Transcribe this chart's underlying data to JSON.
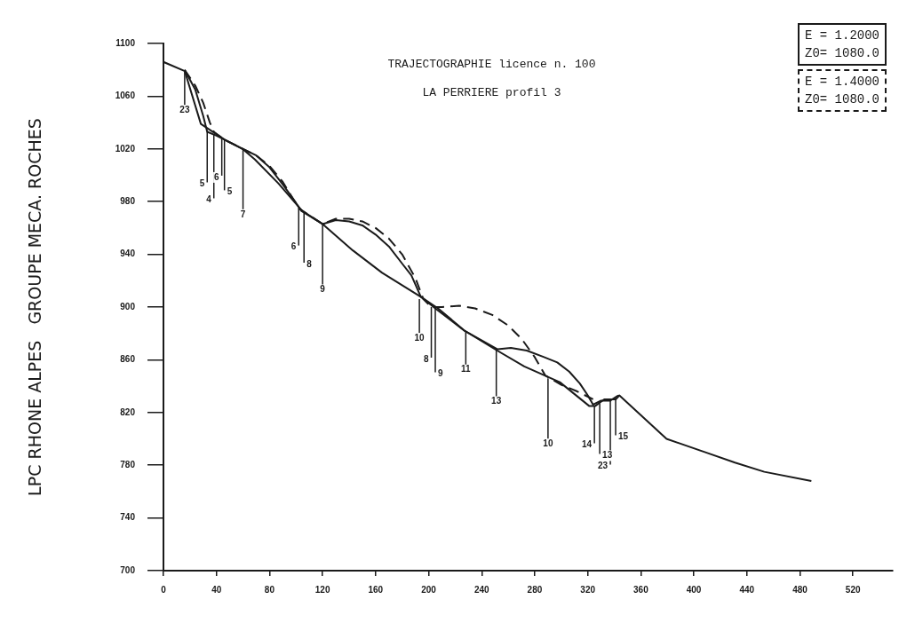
{
  "chart_data": {
    "type": "line",
    "title": "TRAJECTOGRAPHIE licence n. 100",
    "subtitle": "LA PERRIERE profil 3",
    "ylabel": "LPC RHONE ALPES   GROUPE MECA. ROCHES",
    "xlim": [
      0,
      550
    ],
    "xticks": [
      0,
      40,
      80,
      120,
      160,
      200,
      240,
      280,
      320,
      360,
      400,
      440,
      480,
      520
    ],
    "ylim": [
      700,
      1100
    ],
    "yticks": [
      700,
      740,
      780,
      820,
      860,
      900,
      940,
      980,
      1020,
      1060,
      1100
    ],
    "grid": false,
    "legend": "top right",
    "marker": "none",
    "series": [
      {
        "color": "#1a1a1a",
        "line_style": "solid",
        "x": [
          0,
          16.1,
          28.2,
          46.2,
          59.6,
          69,
          86.5,
          104.6,
          120,
          142.8,
          164.9,
          193.7,
          207.1,
          227.2,
          250,
          272.1,
          298.9,
          321,
          325.7,
          332.4,
          341.2,
          343.8,
          379.4,
          408.2,
          431,
          453.1,
          488.6
        ],
        "values": [
          1086,
          1079,
          1039,
          1027,
          1020,
          1012,
          994,
          973,
          963,
          943,
          926,
          908,
          899,
          882,
          868,
          855,
          843,
          825,
          825,
          830,
          830,
          833,
          800,
          790,
          782,
          775,
          768
        ]
      },
      {
        "name": "E = 1.2000\nZ0= 1080.0",
        "color": "#1a1a1a",
        "line_style": "solid",
        "x": [
          16,
          24,
          30,
          33,
          40,
          46,
          60,
          70,
          80,
          90,
          100,
          104,
          120,
          130,
          140,
          150,
          160,
          170,
          180,
          187,
          194,
          205,
          227,
          252,
          262,
          274,
          287,
          297,
          306,
          314,
          320,
          324,
          330,
          337,
          343
        ],
        "values": [
          1080,
          1065,
          1045,
          1033,
          1030,
          1027,
          1020,
          1015,
          1006,
          993,
          979,
          973,
          963,
          966,
          965,
          962,
          955,
          946,
          933,
          924,
          908,
          899,
          882,
          868,
          869,
          867,
          862,
          858,
          851,
          842,
          833,
          826,
          829,
          829,
          833
        ]
      },
      {
        "name": "E = 1.4000\nZ0= 1080.0",
        "color": "#1a1a1a",
        "line_style": "dashed",
        "x": [
          16,
          24,
          30,
          35,
          38,
          46,
          60,
          70,
          80,
          90,
          102,
          120,
          130,
          140,
          150,
          160,
          170,
          180,
          190,
          196,
          202,
          210,
          223,
          235,
          248,
          260,
          270,
          280,
          288,
          300,
          312,
          324
        ],
        "values": [
          1080,
          1068,
          1055,
          1040,
          1033,
          1027,
          1020,
          1015,
          1007,
          995,
          975,
          963,
          967,
          967,
          965,
          960,
          952,
          940,
          922,
          906,
          900,
          900,
          901,
          899,
          894,
          886,
          876,
          862,
          848,
          841,
          836,
          830
        ]
      }
    ],
    "annotations": [
      {
        "text": "23",
        "x": 16,
        "y": 1079
      },
      {
        "text": "5",
        "x": 33,
        "y": 1033
      },
      {
        "text": "4",
        "x": 38,
        "y": 1031
      },
      {
        "text": "6",
        "x": 44,
        "y": 1028
      },
      {
        "text": "5",
        "x": 46,
        "y": 1027
      },
      {
        "text": "7",
        "x": 60,
        "y": 1020
      },
      {
        "text": "6",
        "x": 102,
        "y": 975
      },
      {
        "text": "8",
        "x": 106,
        "y": 972
      },
      {
        "text": "9",
        "x": 120,
        "y": 963
      },
      {
        "text": "10",
        "x": 193,
        "y": 906
      },
      {
        "text": "8",
        "x": 202,
        "y": 900
      },
      {
        "text": "9",
        "x": 205,
        "y": 899
      },
      {
        "text": "11",
        "x": 228,
        "y": 882
      },
      {
        "text": "13",
        "x": 251,
        "y": 868
      },
      {
        "text": "10",
        "x": 290,
        "y": 846
      },
      {
        "text": "14",
        "x": 325,
        "y": 825
      },
      {
        "text": "13",
        "x": 329,
        "y": 827
      },
      {
        "text": "23",
        "x": 337,
        "y": 829
      },
      {
        "text": "15",
        "x": 341,
        "y": 831
      }
    ]
  }
}
